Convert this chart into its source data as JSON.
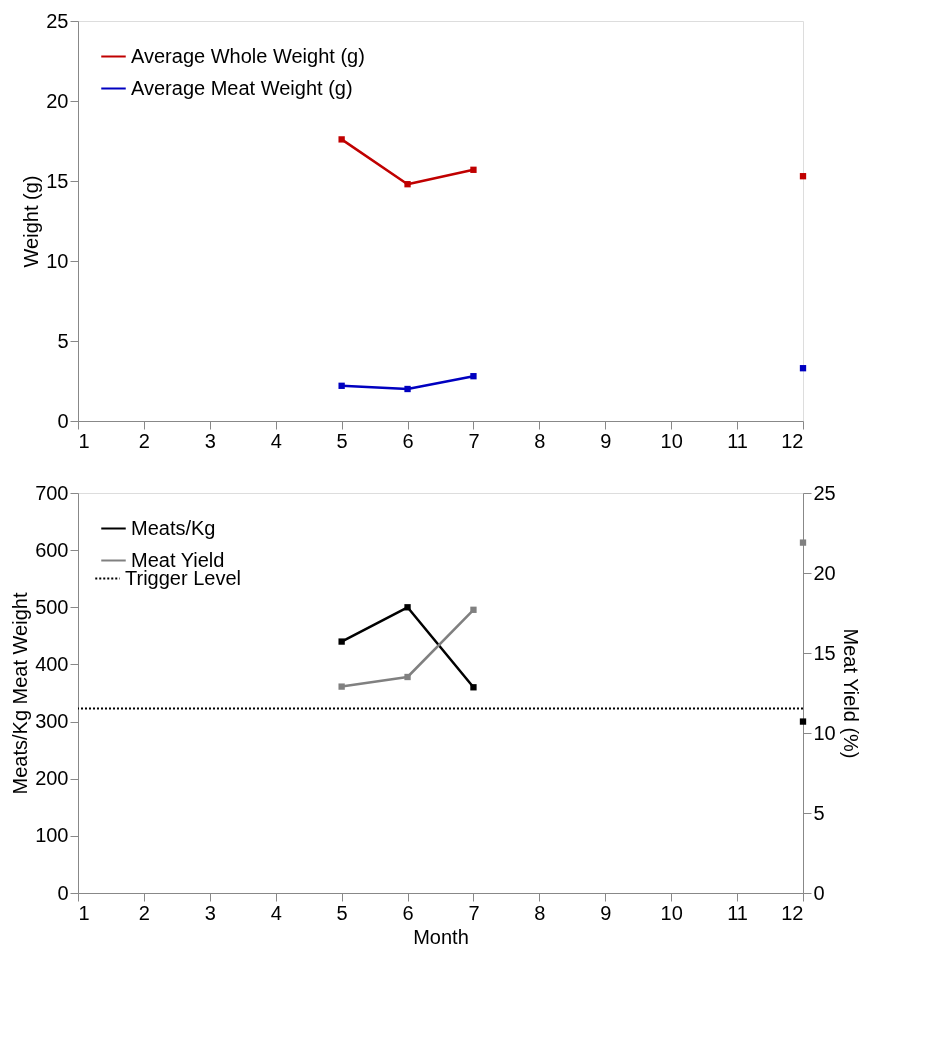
{
  "chart_data": [
    {
      "type": "line",
      "ylabel": "Weight (g)",
      "x": [
        5,
        6,
        7,
        8,
        9,
        10,
        11,
        12
      ],
      "xlim": [
        1,
        12
      ],
      "xticks": [
        1,
        2,
        3,
        4,
        5,
        6,
        7,
        8,
        9,
        10,
        11,
        12
      ],
      "ylim": [
        0,
        25
      ],
      "yticks": [
        0,
        5,
        10,
        15,
        20,
        25
      ],
      "grid": false,
      "legend": "top left",
      "marker": "square",
      "line_style": "solid",
      "series": [
        {
          "name": "Average Whole Weight (g)",
          "color": "#c00000",
          "values": [
            17.6,
            14.8,
            15.7,
            null,
            null,
            null,
            null,
            15.3
          ]
        },
        {
          "name": "Average Meat Weight (g)",
          "color": "#0000c0",
          "values": [
            2.2,
            2.0,
            2.8,
            null,
            null,
            null,
            null,
            3.3
          ]
        }
      ]
    },
    {
      "type": "line",
      "xlabel": "Month",
      "ylabel": "Meats/Kg Meat Weight",
      "y2label": "Meat Yield (%)",
      "x": [
        5,
        6,
        7,
        8,
        9,
        10,
        11,
        12
      ],
      "xlim": [
        1,
        12
      ],
      "xticks": [
        1,
        2,
        3,
        4,
        5,
        6,
        7,
        8,
        9,
        10,
        11,
        12
      ],
      "ylim": [
        0,
        700
      ],
      "yticks": [
        0,
        100,
        200,
        300,
        400,
        500,
        600,
        700
      ],
      "y2lim": [
        0,
        25
      ],
      "y2ticks": [
        0,
        5,
        10,
        15,
        20,
        25
      ],
      "grid": false,
      "legend": "top left",
      "marker": "square",
      "line_style": "solid",
      "series": [
        {
          "name": "Meats/Kg",
          "color": "#000000",
          "values": [
            440,
            500,
            360,
            null,
            null,
            null,
            null,
            300
          ]
        },
        {
          "name": "Meat Yield",
          "color": "#808080",
          "axis": "y2",
          "values": [
            12.9,
            13.5,
            17.7,
            null,
            null,
            null,
            null,
            21.9
          ]
        }
      ],
      "ref_lines": [
        {
          "axis": "y",
          "value": 323,
          "label": "Trigger Level",
          "color": "#000000",
          "line_style": "dotted"
        }
      ]
    }
  ]
}
